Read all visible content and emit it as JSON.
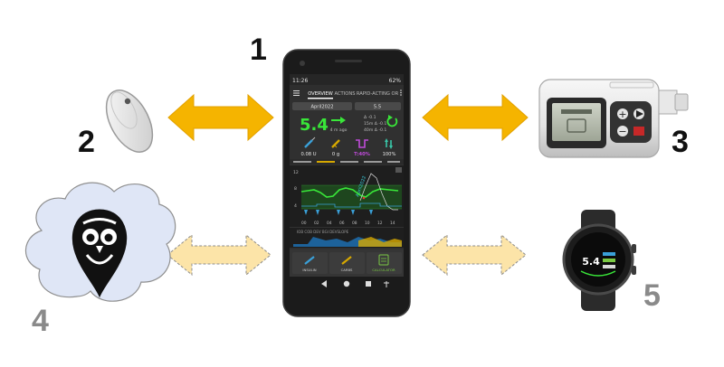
{
  "labels": {
    "phone": "1",
    "sensor": "2",
    "pump": "3",
    "cloud": "4",
    "watch": "5"
  },
  "phone_screen": {
    "status_time": "11:26",
    "battery": "62%",
    "tabs": [
      "OVERVIEW",
      "ACTIONS",
      "RAPID-ACTING OR"
    ],
    "profile": "April2022",
    "target": "5.5",
    "bg_value": "5.4",
    "ago": "4 m ago",
    "delta_1": "Δ -0.1",
    "delta_2": "15m Δ -0.1",
    "delta_3": "40m Δ -0.1",
    "iob": "0.08 U",
    "cob": "0 g",
    "basal": "T:40%",
    "autosens": "100%",
    "chart_profile": "April2022",
    "y_labels": [
      "12",
      "8",
      "4"
    ],
    "x_labels": [
      "00",
      "02",
      "04",
      "06",
      "08",
      "10",
      "12",
      "14"
    ],
    "lower_chart_text": "IOB COB DEV BGI DEVSLOPE",
    "buttons": [
      "INSULIN",
      "CARBS",
      "CALCULATOR"
    ]
  },
  "colors": {
    "arrow_solid": "#f5b400",
    "arrow_light": "#fce4a8",
    "cloud_fill": "#dfe6f6",
    "bg_green": "#39e639",
    "label_grey": "#8a8a8a"
  },
  "icons": {
    "sensor": "cgm-sensor-icon",
    "pump": "insulin-pump-icon",
    "cloud": "nightscout-owl-icon",
    "watch": "smartwatch-icon"
  }
}
